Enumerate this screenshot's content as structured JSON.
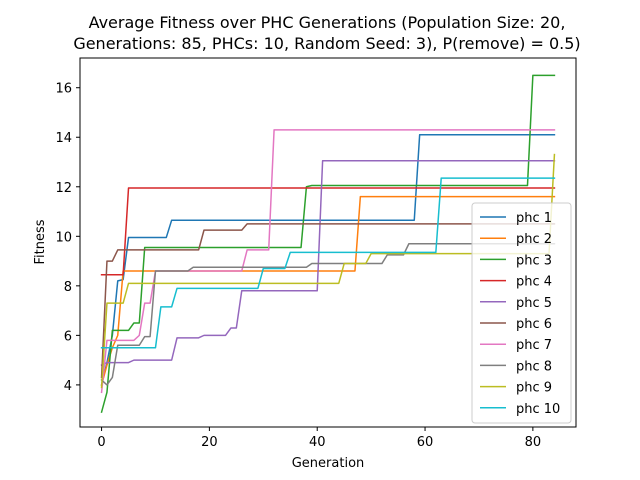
{
  "chart_data": {
    "type": "line",
    "title": [
      "Average Fitness over PHC Generations (Population Size: 20,",
      "Generations: 85, PHCs: 10, Random Seed: 3), P(remove) = 0.5)"
    ],
    "xlabel": "Generation",
    "ylabel": "Fitness",
    "xlim": [
      -4,
      88
    ],
    "ylim": [
      2.3,
      17.2
    ],
    "xticks": [
      0,
      20,
      40,
      60,
      80
    ],
    "yticks": [
      4,
      6,
      8,
      10,
      12,
      14,
      16
    ],
    "grid": false,
    "legend_position": "lower-right",
    "series": [
      {
        "name": "phc 1",
        "color": "#1f77b4",
        "points": [
          [
            0,
            4.0
          ],
          [
            1,
            4.9
          ],
          [
            2,
            6.0
          ],
          [
            3,
            8.2
          ],
          [
            4,
            8.25
          ],
          [
            5,
            9.95
          ],
          [
            12,
            9.95
          ],
          [
            13,
            10.65
          ],
          [
            58,
            10.65
          ],
          [
            59,
            14.1
          ],
          [
            84,
            14.1
          ]
        ]
      },
      {
        "name": "phc 2",
        "color": "#ff7f0e",
        "points": [
          [
            0,
            4.0
          ],
          [
            1,
            4.8
          ],
          [
            2,
            5.5
          ],
          [
            3,
            6.0
          ],
          [
            4,
            8.6
          ],
          [
            47,
            8.6
          ],
          [
            48,
            11.6
          ],
          [
            84,
            11.6
          ]
        ]
      },
      {
        "name": "phc 3",
        "color": "#2ca02c",
        "points": [
          [
            0,
            2.9
          ],
          [
            1,
            3.7
          ],
          [
            2,
            6.2
          ],
          [
            5,
            6.2
          ],
          [
            6,
            6.5
          ],
          [
            7,
            6.5
          ],
          [
            8,
            9.55
          ],
          [
            37,
            9.55
          ],
          [
            38,
            12.0
          ],
          [
            39,
            12.05
          ],
          [
            79,
            12.05
          ],
          [
            80,
            16.5
          ],
          [
            84,
            16.5
          ]
        ]
      },
      {
        "name": "phc 4",
        "color": "#d62728",
        "points": [
          [
            0,
            8.45
          ],
          [
            4,
            8.45
          ],
          [
            5,
            11.95
          ],
          [
            84,
            11.95
          ]
        ]
      },
      {
        "name": "phc 5",
        "color": "#9467bd",
        "points": [
          [
            0,
            4.8
          ],
          [
            1,
            4.9
          ],
          [
            5,
            4.9
          ],
          [
            6,
            5.0
          ],
          [
            13,
            5.0
          ],
          [
            14,
            5.9
          ],
          [
            18,
            5.9
          ],
          [
            19,
            6.0
          ],
          [
            23,
            6.0
          ],
          [
            24,
            6.3
          ],
          [
            25,
            6.3
          ],
          [
            26,
            7.8
          ],
          [
            40,
            7.8
          ],
          [
            41,
            13.05
          ],
          [
            84,
            13.05
          ]
        ]
      },
      {
        "name": "phc 6",
        "color": "#8c564b",
        "points": [
          [
            0,
            4.3
          ],
          [
            1,
            9.0
          ],
          [
            2,
            9.0
          ],
          [
            3,
            9.45
          ],
          [
            18,
            9.45
          ],
          [
            19,
            10.25
          ],
          [
            26,
            10.25
          ],
          [
            27,
            10.5
          ],
          [
            84,
            10.5
          ]
        ]
      },
      {
        "name": "phc 7",
        "color": "#e377c2",
        "points": [
          [
            0,
            3.7
          ],
          [
            1,
            5.8
          ],
          [
            6,
            5.8
          ],
          [
            7,
            6.0
          ],
          [
            8,
            7.3
          ],
          [
            9,
            7.3
          ],
          [
            10,
            8.6
          ],
          [
            26,
            8.6
          ],
          [
            27,
            9.45
          ],
          [
            31,
            9.45
          ],
          [
            32,
            14.3
          ],
          [
            84,
            14.3
          ]
        ]
      },
      {
        "name": "phc 8",
        "color": "#7f7f7f",
        "points": [
          [
            0,
            4.2
          ],
          [
            1,
            4.0
          ],
          [
            2,
            4.3
          ],
          [
            3,
            5.6
          ],
          [
            7,
            5.6
          ],
          [
            8,
            5.95
          ],
          [
            9,
            5.95
          ],
          [
            10,
            8.6
          ],
          [
            16,
            8.6
          ],
          [
            17,
            8.75
          ],
          [
            38,
            8.75
          ],
          [
            39,
            8.9
          ],
          [
            52,
            8.9
          ],
          [
            53,
            9.25
          ],
          [
            56,
            9.25
          ],
          [
            57,
            9.7
          ],
          [
            84,
            9.7
          ]
        ]
      },
      {
        "name": "phc 9",
        "color": "#bcbd22",
        "points": [
          [
            0,
            3.9
          ],
          [
            1,
            7.3
          ],
          [
            4,
            7.3
          ],
          [
            5,
            8.1
          ],
          [
            44,
            8.1
          ],
          [
            45,
            8.9
          ],
          [
            49,
            8.9
          ],
          [
            50,
            9.3
          ],
          [
            83,
            9.3
          ],
          [
            84,
            13.3
          ]
        ]
      },
      {
        "name": "phc 10",
        "color": "#17becf",
        "points": [
          [
            0,
            5.5
          ],
          [
            10,
            5.5
          ],
          [
            11,
            7.15
          ],
          [
            13,
            7.15
          ],
          [
            14,
            7.9
          ],
          [
            29,
            7.9
          ],
          [
            30,
            8.7
          ],
          [
            34,
            8.7
          ],
          [
            35,
            9.35
          ],
          [
            62,
            9.35
          ],
          [
            63,
            12.35
          ],
          [
            84,
            12.35
          ]
        ]
      }
    ]
  }
}
